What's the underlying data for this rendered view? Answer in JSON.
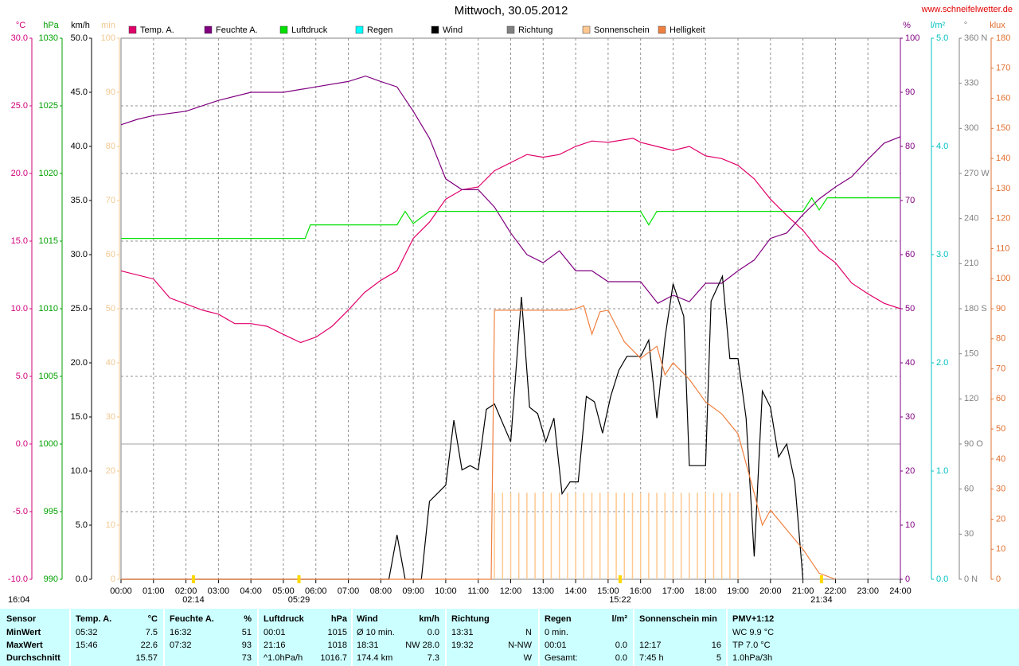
{
  "chart_data": {
    "type": "line",
    "title": "Mittwoch, 30.05.2012",
    "site": "www.schneifelwetter.de",
    "grid": true,
    "xlim": [
      0,
      24
    ],
    "xticks": [
      {
        "value": 0,
        "label": "00:00"
      },
      {
        "value": 1,
        "label": "01:00"
      },
      {
        "value": 2,
        "label": "02:00"
      },
      {
        "value": 3,
        "label": "03:00"
      },
      {
        "value": 4,
        "label": "04:00"
      },
      {
        "value": 5,
        "label": "05:00"
      },
      {
        "value": 6,
        "label": "06:00"
      },
      {
        "value": 7,
        "label": "07:00"
      },
      {
        "value": 8,
        "label": "08:00"
      },
      {
        "value": 9,
        "label": "09:00"
      },
      {
        "value": 10,
        "label": "10:00"
      },
      {
        "value": 11,
        "label": "11:00"
      },
      {
        "value": 12,
        "label": "12:00"
      },
      {
        "value": 13,
        "label": "13:00"
      },
      {
        "value": 14,
        "label": "14:00"
      },
      {
        "value": 15,
        "label": "15:00"
      },
      {
        "value": 16,
        "label": "16:00"
      },
      {
        "value": 17,
        "label": "17:00"
      },
      {
        "value": 18,
        "label": "18:00"
      },
      {
        "value": 19,
        "label": "19:00"
      },
      {
        "value": 20,
        "label": "20:00"
      },
      {
        "value": 21,
        "label": "21:00"
      },
      {
        "value": 22,
        "label": "22:00"
      },
      {
        "value": 23,
        "label": "23:00"
      },
      {
        "value": 24,
        "label": "24:00"
      }
    ],
    "axes": [
      {
        "id": "temp",
        "unit": "°C",
        "side": "left",
        "color": "#d0007a",
        "ylim": [
          -10,
          30
        ],
        "yticks": [
          {
            "value": -10,
            "label": "-10.0"
          },
          {
            "value": -5,
            "label": "-5.0"
          },
          {
            "value": 0,
            "label": "0.0"
          },
          {
            "value": 5,
            "label": "5.0"
          },
          {
            "value": 10,
            "label": "10.0"
          },
          {
            "value": 15,
            "label": "15.0"
          },
          {
            "value": 20,
            "label": "20.0"
          },
          {
            "value": 25,
            "label": "25.0"
          },
          {
            "value": 30,
            "label": "30.0"
          }
        ]
      },
      {
        "id": "hpa",
        "unit": "hPa",
        "side": "left",
        "color": "#00a000",
        "ylim": [
          990,
          1030
        ],
        "yticks": [
          990,
          995,
          1000,
          1005,
          1010,
          1015,
          1020,
          1025,
          1030
        ]
      },
      {
        "id": "kmh",
        "unit": "km/h",
        "side": "left",
        "color": "#000000",
        "ylim": [
          0,
          50
        ],
        "yticks": [
          {
            "value": 0,
            "label": "0.0"
          },
          {
            "value": 5,
            "label": "5.0"
          },
          {
            "value": 10,
            "label": "10.0"
          },
          {
            "value": 15,
            "label": "15.0"
          },
          {
            "value": 20,
            "label": "20.0"
          },
          {
            "value": 25,
            "label": "25.0"
          },
          {
            "value": 30,
            "label": "30.0"
          },
          {
            "value": 35,
            "label": "35.0"
          },
          {
            "value": 40,
            "label": "40.0"
          },
          {
            "value": 45,
            "label": "45.0"
          },
          {
            "value": 50,
            "label": "50.0"
          }
        ]
      },
      {
        "id": "min",
        "unit": "min",
        "side": "left",
        "color": "#f0c890",
        "ylim": [
          0,
          100
        ],
        "yticks": [
          0,
          10,
          20,
          30,
          40,
          50,
          60,
          70,
          80,
          90,
          100
        ]
      },
      {
        "id": "pct",
        "unit": "%",
        "side": "right",
        "color": "#800080",
        "ylim": [
          0,
          100
        ],
        "yticks": [
          0,
          10,
          20,
          30,
          40,
          50,
          60,
          70,
          80,
          90,
          100
        ]
      },
      {
        "id": "rain",
        "unit": "l/m²",
        "side": "right",
        "color": "#00c0c0",
        "ylim": [
          0,
          5
        ],
        "yticks": [
          {
            "value": 0,
            "label": "0.0"
          },
          {
            "value": 1,
            "label": "1.0"
          },
          {
            "value": 2,
            "label": "2.0"
          },
          {
            "value": 3,
            "label": "3.0"
          },
          {
            "value": 4,
            "label": "4.0"
          },
          {
            "value": 5,
            "label": "5.0"
          }
        ]
      },
      {
        "id": "deg",
        "unit": "°",
        "side": "right",
        "color": "#808080",
        "ylim": [
          0,
          360
        ],
        "yticks": [
          {
            "value": 0,
            "label": "0 N"
          },
          30,
          60,
          {
            "value": 90,
            "label": "90 O"
          },
          120,
          150,
          {
            "value": 180,
            "label": "180 S"
          },
          210,
          240,
          {
            "value": 270,
            "label": "270 W"
          },
          300,
          330,
          {
            "value": 360,
            "label": "360 N"
          }
        ]
      },
      {
        "id": "klux",
        "unit": "klux",
        "side": "right",
        "color": "#e07030",
        "ylim": [
          0,
          180
        ],
        "yticks": [
          0,
          10,
          20,
          30,
          40,
          50,
          60,
          70,
          80,
          90,
          100,
          110,
          120,
          130,
          140,
          150,
          160,
          170,
          180
        ]
      }
    ],
    "series": [
      {
        "name": "Temp. A.",
        "color": "#e0006a",
        "axis": "temp",
        "style": "line",
        "x": [
          0,
          1,
          1.5,
          2.5,
          3,
          3.5,
          4,
          4.5,
          5,
          5.53,
          6,
          6.5,
          7,
          7.5,
          8,
          8.5,
          9,
          9.5,
          10,
          10.5,
          11,
          11.5,
          12,
          12.5,
          13,
          13.5,
          14,
          14.5,
          15,
          15.77,
          16,
          16.5,
          17,
          17.5,
          18,
          18.5,
          19,
          19.5,
          20,
          20.5,
          21,
          21.5,
          22,
          22.5,
          23,
          23.5,
          24
        ],
        "values": [
          12.8,
          12.2,
          10.8,
          9.9,
          9.6,
          8.9,
          8.9,
          8.7,
          8.1,
          7.5,
          7.9,
          8.7,
          9.9,
          11.2,
          12.1,
          12.8,
          15.2,
          16.4,
          18.1,
          18.8,
          19.0,
          20.2,
          20.8,
          21.4,
          21.2,
          21.4,
          22.0,
          22.4,
          22.3,
          22.6,
          22.3,
          22.0,
          21.7,
          22.0,
          21.3,
          21.1,
          20.6,
          19.6,
          18.1,
          16.9,
          15.8,
          14.3,
          13.4,
          11.9,
          11.1,
          10.4,
          10.0
        ]
      },
      {
        "name": "Feuchte A.",
        "color": "#800080",
        "axis": "pct",
        "style": "line",
        "x": [
          0,
          0.5,
          1,
          2,
          3,
          4,
          5,
          6,
          7,
          7.53,
          8,
          8.5,
          9,
          9.5,
          10,
          10.5,
          11,
          11.5,
          12,
          12.5,
          13,
          13.5,
          14,
          14.5,
          15,
          16,
          16.53,
          17,
          17.5,
          18,
          18.5,
          19,
          19.5,
          20,
          20.5,
          21,
          21.5,
          22,
          22.5,
          23,
          23.5,
          24
        ],
        "values": [
          84,
          85,
          85.7,
          86.5,
          88.5,
          90,
          90,
          91,
          92,
          93,
          92,
          91,
          86.5,
          81.5,
          74,
          72,
          72,
          68.8,
          64,
          60,
          58.5,
          60.7,
          57,
          57,
          55,
          55,
          51,
          52.5,
          51.3,
          54.7,
          54.7,
          57,
          59,
          63,
          64,
          67.4,
          70.3,
          72.5,
          74.4,
          77.6,
          80.6,
          81.8
        ]
      },
      {
        "name": "Luftdruck",
        "color": "#00e000",
        "axis": "hpa",
        "style": "line",
        "x": [
          0,
          5.67,
          5.83,
          8.5,
          8.75,
          9,
          9.5,
          16,
          16.25,
          16.5,
          21,
          21.27,
          21.5,
          21.75,
          24
        ],
        "values": [
          1015.2,
          1015.2,
          1016.2,
          1016.2,
          1017.2,
          1016.3,
          1017.2,
          1017.2,
          1016.2,
          1017.2,
          1017.2,
          1018.2,
          1017.3,
          1018.2,
          1018.2
        ]
      },
      {
        "name": "Regen",
        "color": "#00ffff",
        "axis": "rain",
        "style": "line",
        "x": [],
        "values": []
      },
      {
        "name": "Wind",
        "color": "#000000",
        "axis": "kmh",
        "style": "line",
        "x": [
          0,
          8.25,
          8.5,
          8.75,
          9.25,
          9.5,
          10,
          10.25,
          10.5,
          10.75,
          11,
          11.25,
          11.5,
          12,
          12.33,
          12.58,
          12.83,
          13.08,
          13.33,
          13.58,
          13.83,
          14.08,
          14.33,
          14.58,
          14.83,
          15.08,
          15.33,
          15.58,
          16,
          16.25,
          16.5,
          16.75,
          17,
          17.33,
          17.5,
          18,
          18.17,
          18.52,
          18.75,
          19,
          19.25,
          19.5,
          19.75,
          20,
          20.25,
          20.5,
          20.75,
          21
        ],
        "values": [
          0,
          0,
          4.1,
          0,
          0,
          7.2,
          8.7,
          14.7,
          10.1,
          10.5,
          10.1,
          15.7,
          16.2,
          12.7,
          26.1,
          15.9,
          15.3,
          12.7,
          14.9,
          7.9,
          9.0,
          9.0,
          16.9,
          16.4,
          13.5,
          16.9,
          19.3,
          20.6,
          20.6,
          22.1,
          14.9,
          22.3,
          27.3,
          24.3,
          10.5,
          10.5,
          25.7,
          28.0,
          20.4,
          20.4,
          14.9,
          2.1,
          17.4,
          15.9,
          11.3,
          12.5,
          9.0,
          0
        ]
      },
      {
        "name": "Richtung",
        "color": "#808080",
        "axis": "deg",
        "style": "line",
        "x": [],
        "values": []
      },
      {
        "name": "Sonnenschein",
        "color": "#ffc890",
        "axis": "min",
        "style": "bars",
        "x": [
          11.5,
          11.75,
          12,
          12.25,
          12.5,
          12.75,
          13,
          13.25,
          13.5,
          13.75,
          14,
          14.25,
          14.5,
          14.75,
          15,
          15.25,
          15.5,
          15.75,
          16,
          16.25,
          16.5,
          16.75,
          17,
          17.25,
          17.5,
          17.75,
          18,
          18.25,
          18.5,
          18.75,
          19
        ],
        "values": [
          16,
          16,
          16,
          16,
          16,
          16,
          16,
          16,
          16,
          16,
          16,
          16,
          16,
          16,
          16,
          16,
          16,
          16,
          16,
          16,
          16,
          16,
          16,
          16,
          16,
          16,
          16,
          16,
          16,
          16,
          16
        ]
      },
      {
        "name": "Helligkeit",
        "color": "#f08040",
        "axis": "klux",
        "style": "line",
        "x": [
          0,
          11.4,
          11.5,
          13.75,
          14,
          14.25,
          14.5,
          14.75,
          15,
          15.5,
          16,
          16.5,
          16.75,
          17,
          17.5,
          18,
          18.5,
          19,
          19.5,
          19.75,
          20,
          20.5,
          21,
          21.5,
          22
        ],
        "values": [
          0,
          0,
          89.5,
          89.5,
          90,
          91,
          81.5,
          89,
          89.5,
          79,
          73.5,
          77.5,
          68,
          72,
          66.5,
          59,
          55,
          48.4,
          28.6,
          18,
          23,
          16.5,
          10,
          2,
          0
        ]
      }
    ],
    "annotations": [
      {
        "text": "02:14",
        "x": 2.23
      },
      {
        "text": "05:29",
        "x": 5.48
      },
      {
        "text": "15:22",
        "x": 15.37
      },
      {
        "text": "21:34",
        "x": 21.57
      }
    ],
    "corner_note": "16:04"
  },
  "table": {
    "header": [
      "Sensor",
      "Temp. A.",
      "°C",
      "Feuchte A.",
      "%",
      "Luftdruck",
      "hPa",
      "Wind",
      "km/h",
      "Richtung",
      null,
      "Regen",
      "l/m²",
      "Sonnenschein min",
      null,
      "PMV+1:12"
    ],
    "rows": [
      [
        "MinWert",
        "05:32",
        "7.5",
        "16:32",
        "51",
        "00:01",
        "1015",
        "Ø 10 min.",
        "0.0",
        "13:31",
        "N",
        "0 min.",
        null,
        null,
        null,
        "WC 9.9 °C"
      ],
      [
        "MaxWert",
        "15:46",
        "22.6",
        "07:32",
        "93",
        "21:16",
        "1018",
        "18:31",
        "NW 28.0",
        "19:32",
        "N-NW",
        "00:01",
        "0.0",
        "12:17",
        "16",
        "TP 7.0 °C"
      ],
      [
        "Durchschnitt",
        null,
        "15.57",
        null,
        "73",
        "^1.0hPa/h",
        "1016.7",
        "174.4 km",
        "7.3",
        null,
        "W",
        "Gesamt:",
        "0.0",
        "7:45 h",
        "5",
        "1.0hPa/3h"
      ]
    ]
  }
}
